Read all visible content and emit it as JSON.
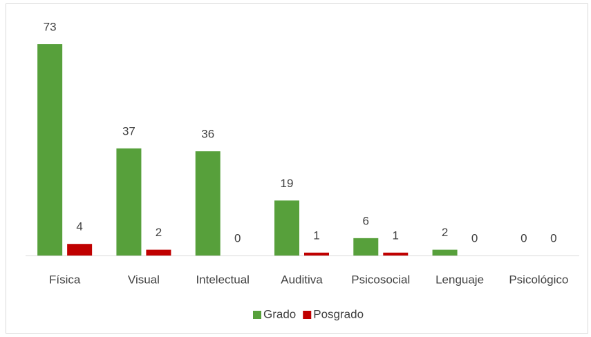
{
  "chart_data": {
    "type": "bar",
    "categories": [
      "Física",
      "Visual",
      "Intelectual",
      "Auditiva",
      "Psicosocial",
      "Lenguaje",
      "Psicológico"
    ],
    "series": [
      {
        "name": "Grado",
        "color": "#57a03b",
        "values": [
          73,
          37,
          36,
          19,
          6,
          2,
          0
        ]
      },
      {
        "name": "Posgrado",
        "color": "#c00000",
        "values": [
          4,
          2,
          0,
          1,
          1,
          0,
          0
        ]
      }
    ],
    "ylim": [
      0,
      73
    ],
    "legend": "bottom"
  }
}
